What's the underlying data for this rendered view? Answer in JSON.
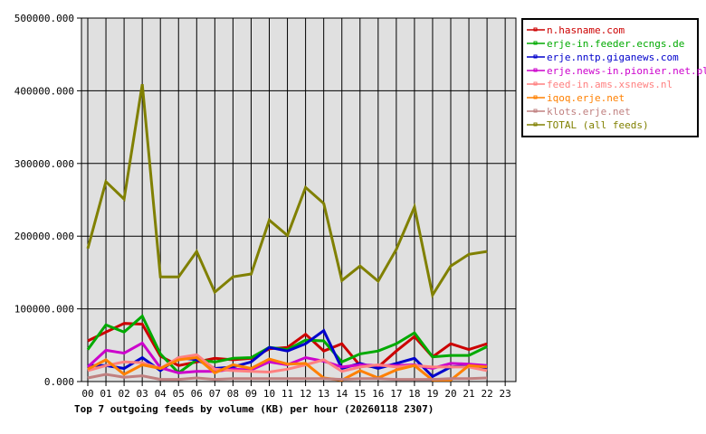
{
  "chart_data": {
    "type": "line",
    "title": "Top 7 outgoing feeds by volume (KB) per hour (20260118 2307)",
    "xlabel": "",
    "ylabel": "",
    "ylim": [
      0,
      500000
    ],
    "y_ticks": [
      "0.000",
      "100000.000",
      "200000.000",
      "300000.000",
      "400000.000",
      "500000.000"
    ],
    "x_ticks": [
      "00",
      "01",
      "02",
      "03",
      "04",
      "05",
      "06",
      "07",
      "08",
      "09",
      "10",
      "11",
      "12",
      "13",
      "14",
      "15",
      "16",
      "17",
      "18",
      "19",
      "20",
      "21",
      "22",
      "23"
    ],
    "grid": true,
    "legend_position": "right",
    "series": [
      {
        "name": "n.hasname.com",
        "color": "#cc0000",
        "values": [
          56000,
          68000,
          80000,
          79000,
          35000,
          22000,
          27000,
          32000,
          30000,
          32000,
          45000,
          47000,
          65000,
          42000,
          52000,
          22000,
          20000,
          42000,
          62000,
          34000,
          52000,
          44000,
          52000
        ]
      },
      {
        "name": "erje-in.feeder.ecngs.de",
        "color": "#00aa00",
        "values": [
          44000,
          78000,
          68000,
          90000,
          38000,
          12000,
          30000,
          27000,
          32000,
          33000,
          47000,
          44000,
          57000,
          56000,
          27000,
          38000,
          42000,
          52000,
          67000,
          34000,
          36000,
          36000,
          48000
        ]
      },
      {
        "name": "erje.nntp.giganews.com",
        "color": "#0000cc",
        "values": [
          22000,
          22000,
          18000,
          33000,
          15000,
          33000,
          30000,
          18000,
          20000,
          27000,
          47000,
          42000,
          52000,
          70000,
          18000,
          25000,
          18000,
          25000,
          32000,
          7000,
          20000,
          22000,
          17000
        ]
      },
      {
        "name": "erje.news-in.pionier.net.pl",
        "color": "#cc00cc",
        "values": [
          20000,
          43000,
          39000,
          53000,
          19000,
          12000,
          14000,
          14000,
          17000,
          16000,
          27000,
          23000,
          33000,
          28000,
          20000,
          23000,
          22000,
          22000,
          23000,
          18000,
          25000,
          24000,
          22000
        ]
      },
      {
        "name": "feed-in.ams.xsnews.nl",
        "color": "#ff8080",
        "values": [
          15000,
          22000,
          27000,
          26000,
          18000,
          33000,
          37000,
          17000,
          15000,
          14000,
          13000,
          17000,
          23000,
          30000,
          14000,
          20000,
          23000,
          20000,
          22000,
          20000,
          20000,
          20000,
          15000
        ]
      },
      {
        "name": "iqoq.erje.net",
        "color": "#ff8000",
        "values": [
          17000,
          30000,
          10000,
          23000,
          18000,
          30000,
          33000,
          12000,
          23000,
          18000,
          31000,
          24000,
          25000,
          5000,
          2000,
          15000,
          5000,
          16000,
          22000,
          2000,
          2000,
          22000,
          20000
        ]
      },
      {
        "name": "klots.erje.net",
        "color": "#c08080",
        "values": [
          5000,
          10000,
          6000,
          8000,
          3000,
          3000,
          5000,
          3000,
          4000,
          4000,
          4000,
          4000,
          4000,
          4000,
          3000,
          4000,
          4000,
          3000,
          3000,
          3000,
          4000,
          4000,
          5000
        ]
      },
      {
        "name": "TOTAL (all feeds)",
        "color": "#808000",
        "values": [
          183000,
          275000,
          251000,
          409000,
          144000,
          144000,
          179000,
          123000,
          144000,
          148000,
          222000,
          201000,
          267000,
          245000,
          139000,
          159000,
          138000,
          182000,
          240000,
          119000,
          159000,
          175000,
          179000
        ]
      }
    ]
  }
}
